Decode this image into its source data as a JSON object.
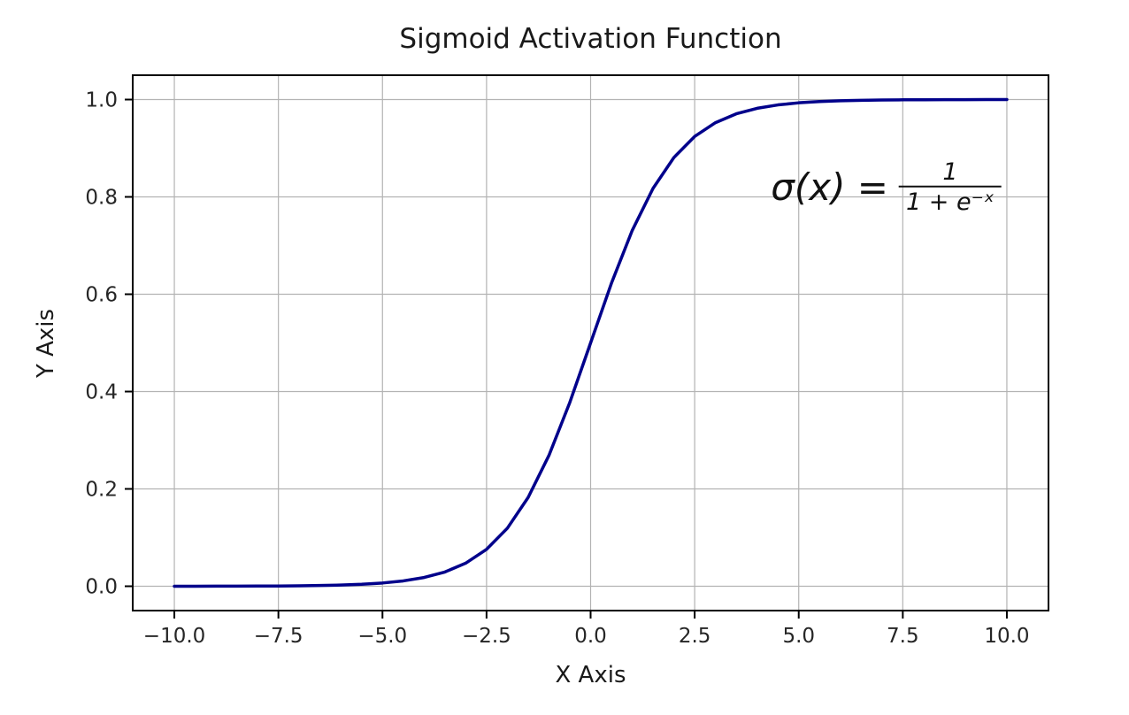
{
  "chart_data": {
    "type": "line",
    "title": "Sigmoid Activation Function",
    "xlabel": "X Axis",
    "ylabel": "Y Axis",
    "xlim": [
      -11,
      11
    ],
    "ylim": [
      -0.05,
      1.05
    ],
    "xticks": [
      -10,
      -7.5,
      -5,
      -2.5,
      0,
      2.5,
      5,
      7.5,
      10
    ],
    "xtick_labels": [
      "−10.0",
      "−7.5",
      "−5.0",
      "−2.5",
      "0.0",
      "2.5",
      "5.0",
      "7.5",
      "10.0"
    ],
    "yticks": [
      0,
      0.2,
      0.4,
      0.6,
      0.8,
      1.0
    ],
    "ytick_labels": [
      "0.0",
      "0.2",
      "0.4",
      "0.6",
      "0.8",
      "1.0"
    ],
    "grid": true,
    "legend_position": "none",
    "series": [
      {
        "name": "sigmoid",
        "color": "#00008b",
        "x": [
          -10,
          -9.5,
          -9,
          -8.5,
          -8,
          -7.5,
          -7,
          -6.5,
          -6,
          -5.5,
          -5,
          -4.5,
          -4,
          -3.5,
          -3,
          -2.5,
          -2,
          -1.5,
          -1,
          -0.5,
          0,
          0.5,
          1,
          1.5,
          2,
          2.5,
          3,
          3.5,
          4,
          4.5,
          5,
          5.5,
          6,
          6.5,
          7,
          7.5,
          8,
          8.5,
          9,
          9.5,
          10
        ],
        "y": [
          5e-05,
          7e-05,
          0.00012,
          0.0002,
          0.00034,
          0.00055,
          0.00091,
          0.0015,
          0.00247,
          0.00407,
          0.00669,
          0.01099,
          0.01799,
          0.02931,
          0.04743,
          0.07586,
          0.1192,
          0.18243,
          0.26894,
          0.37754,
          0.5,
          0.62246,
          0.73106,
          0.81757,
          0.8808,
          0.92414,
          0.95257,
          0.97069,
          0.98201,
          0.98901,
          0.99331,
          0.99593,
          0.99753,
          0.9985,
          0.99909,
          0.99945,
          0.99966,
          0.9998,
          0.99988,
          0.99993,
          0.99995
        ]
      }
    ],
    "annotation": {
      "lhs": "σ(x) =",
      "numerator": "1",
      "denominator": "1 + e⁻ˣ",
      "x": 7.1,
      "y": 0.82
    },
    "colors": {
      "line": "#00008b",
      "grid": "#b3b3b3",
      "text": "#262626",
      "spine": "#000000",
      "background": "#ffffff"
    }
  }
}
